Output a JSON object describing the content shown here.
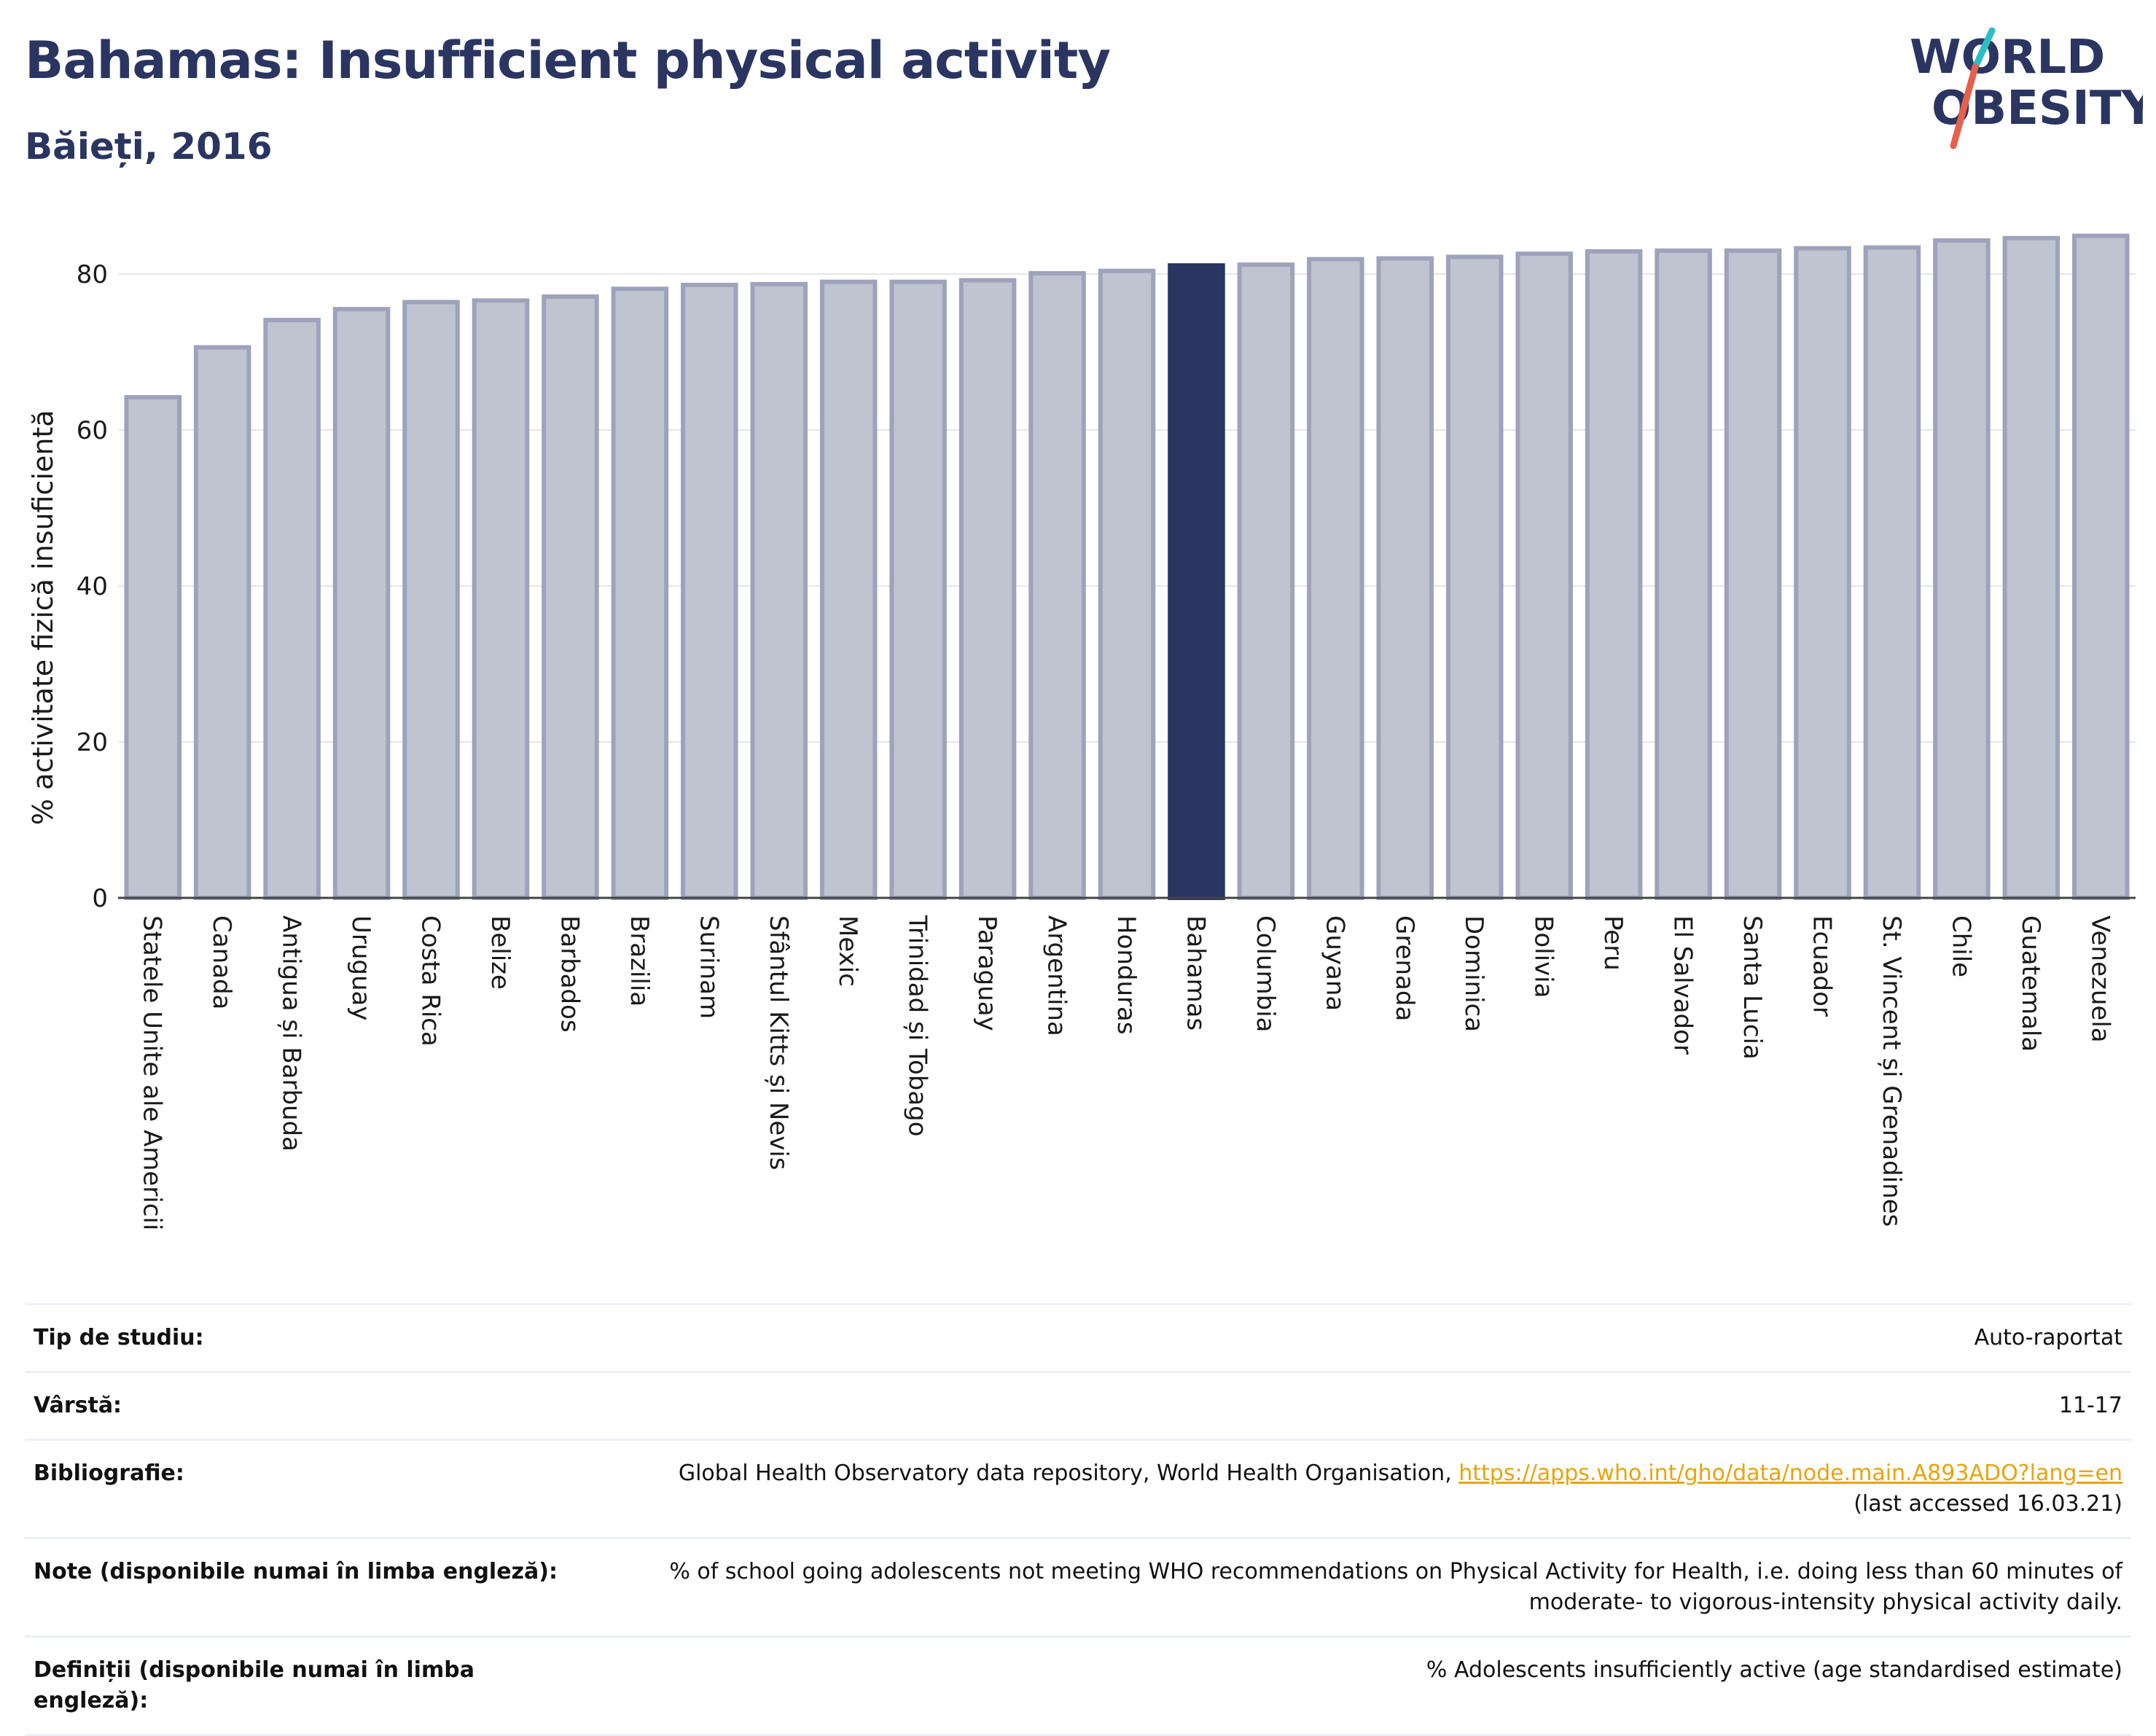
{
  "header": {
    "title": "Bahamas: Insufficient physical activity",
    "subtitle": "Băieți, 2016"
  },
  "logo": {
    "line1": "WORLD",
    "line2": "OBESITY",
    "slash_colors": [
      "#2bbfbf",
      "#e8604c"
    ]
  },
  "colors": {
    "bar": "#c0c3d0",
    "bar_border": "#9ea3bb",
    "highlight": "#2a3561",
    "grid": "#e6e6e6",
    "axis": "#444444"
  },
  "chart_data": {
    "type": "bar",
    "title": "Bahamas: Insufficient physical activity",
    "subtitle": "Băieți, 2016",
    "xlabel": "",
    "ylabel": "% activitate fizică insuficientă",
    "ylim": [
      0,
      85
    ],
    "yticks": [
      0,
      20,
      40,
      60,
      80
    ],
    "grid": true,
    "highlight": "Bahamas",
    "categories": [
      "Statele Unite ale Americii",
      "Canada",
      "Antigua și Barbuda",
      "Uruguay",
      "Costa Rica",
      "Belize",
      "Barbados",
      "Brazilia",
      "Surinam",
      "Sfântul Kitts și Nevis",
      "Mexic",
      "Trinidad și Tobago",
      "Paraguay",
      "Argentina",
      "Honduras",
      "Bahamas",
      "Columbia",
      "Guyana",
      "Grenada",
      "Dominica",
      "Bolivia",
      "Peru",
      "El Salvador",
      "Santa Lucia",
      "Ecuador",
      "St. Vincent și Grenadines",
      "Chile",
      "Guatemala",
      "Venezuela"
    ],
    "values": [
      64.2,
      70.6,
      74.1,
      75.5,
      76.4,
      76.6,
      77.1,
      78.1,
      78.6,
      78.7,
      79.0,
      79.0,
      79.2,
      80.1,
      80.4,
      81.1,
      81.2,
      81.9,
      82.0,
      82.2,
      82.6,
      82.9,
      83.0,
      83.0,
      83.3,
      83.4,
      84.3,
      84.6,
      84.9
    ]
  },
  "info": {
    "study_type_label": "Tip de studiu:",
    "study_type_value": "Auto-raportat",
    "age_label": "Vârstă:",
    "age_value": "11-17",
    "bibliography_label": "Bibliografie:",
    "bibliography_text": "Global Health Observatory data repository, World Health Organisation, ",
    "bibliography_link": "https://apps.who.int/gho/data/node.main.A893ADO?lang=en",
    "bibliography_accessed": "(last accessed 16.03.21)",
    "notes_label": "Note (disponibile numai în limba engleză):",
    "notes_line1": "% of school going adolescents not meeting WHO recommendations on Physical Activity for Health, i.e. doing less than 60 minutes of",
    "notes_line2": "moderate- to vigorous-intensity physical activity daily.",
    "definitions_label": "Definiții (disponibile numai în limba engleză):",
    "definitions_value": "% Adolescents insufficiently active (age standardised estimate)"
  }
}
